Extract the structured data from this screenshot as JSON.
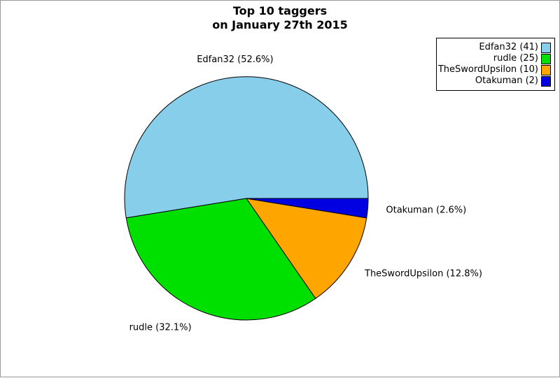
{
  "title": {
    "line1": "Top 10 taggers",
    "line2": "on January 27th 2015"
  },
  "page": {
    "background_color": "#ffffff",
    "frame_color": "#999999"
  },
  "chart_data": {
    "type": "pie",
    "title": "Top 10 taggers on January 27th 2015",
    "total": 78,
    "start_angle_deg": 0,
    "direction": "counterclockwise",
    "slice_stroke_color": "#000000",
    "legend_position": "top-right",
    "series": [
      {
        "name": "Edfan32",
        "value": 41,
        "pct": 52.6,
        "color": "#87CEEB",
        "slice_label": "Edfan32 (52.6%)",
        "legend_label": "Edfan32 (41)"
      },
      {
        "name": "rudle",
        "value": 25,
        "pct": 32.1,
        "color": "#00E000",
        "slice_label": "rudle (32.1%)",
        "legend_label": "rudle (25)"
      },
      {
        "name": "TheSwordUpsilon",
        "value": 10,
        "pct": 12.8,
        "color": "#FFA500",
        "slice_label": "TheSwordUpsilon (12.8%)",
        "legend_label": "TheSwordUpsilon (10)"
      },
      {
        "name": "Otakuman",
        "value": 2,
        "pct": 2.6,
        "color": "#0000E0",
        "slice_label": "Otakuman (2.6%)",
        "legend_label": "Otakuman (2)"
      }
    ]
  }
}
